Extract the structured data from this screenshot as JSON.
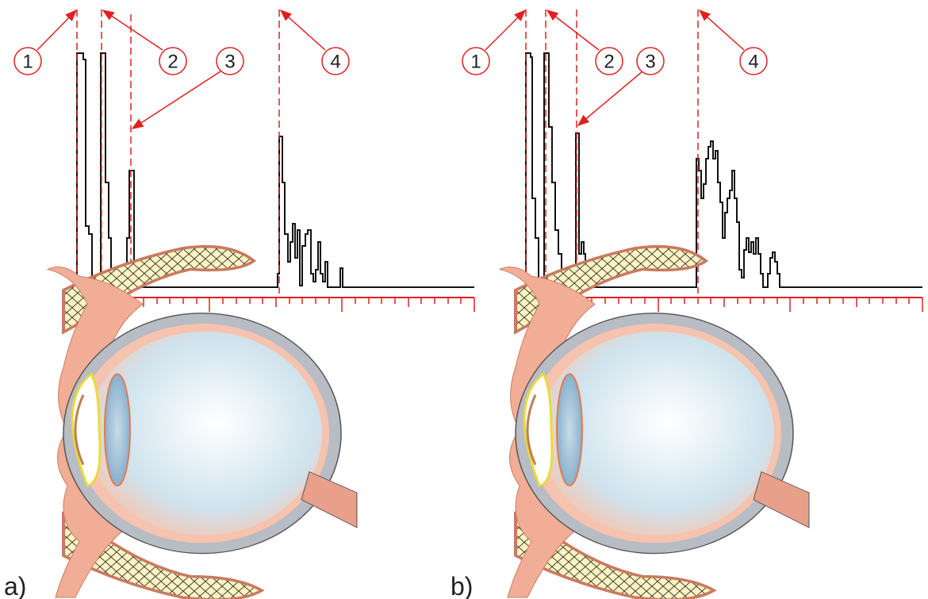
{
  "panels": [
    {
      "label": "a)",
      "markers": [
        "1",
        "2",
        "3",
        "4"
      ]
    },
    {
      "label": "b)",
      "markers": [
        "1",
        "2",
        "3",
        "4"
      ]
    }
  ]
}
